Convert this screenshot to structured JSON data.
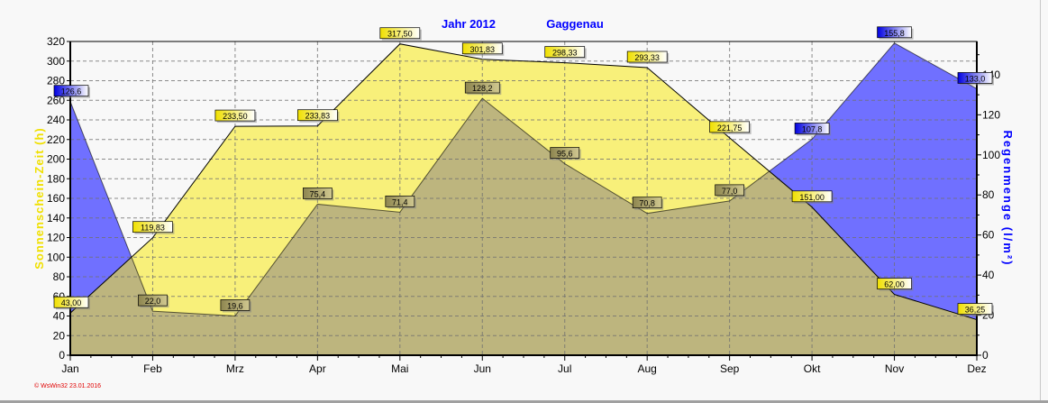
{
  "chart_data": {
    "type": "area",
    "title": "Jahr  2012",
    "subtitle": "Gaggenau",
    "categories": [
      "Jan",
      "Feb",
      "Mrz",
      "Apr",
      "Mai",
      "Jun",
      "Jul",
      "Aug",
      "Sep",
      "Okt",
      "Nov",
      "Dez"
    ],
    "series": [
      {
        "name": "Sonnenschein-Zeit",
        "axis": "left",
        "color": "#f8f07a",
        "values": [
          43.0,
          119.83,
          233.5,
          233.83,
          317.5,
          301.83,
          298.33,
          293.33,
          221.75,
          151.0,
          62.0,
          36.25
        ],
        "labels": [
          "43,00",
          "119,83",
          "233,50",
          "233,83",
          "317,50",
          "301,83",
          "298,33",
          "293,33",
          "221,75",
          "151,00",
          "62,00",
          "36,25"
        ]
      },
      {
        "name": "Regenmenge",
        "axis": "right",
        "color": "#7070ff",
        "values": [
          126.6,
          22.0,
          19.6,
          75.4,
          71.4,
          128.2,
          95.6,
          70.8,
          77.0,
          107.8,
          155.8,
          133.0
        ],
        "labels": [
          "126,6",
          "22,0",
          "19,6",
          "75,4",
          "71,4",
          "128,2",
          "95,6",
          "70,8",
          "77,0",
          "107,8",
          "155,8",
          "133,0"
        ]
      }
    ],
    "overlap_color": "#bdb57e",
    "ylabel": "Sonnenschein-Zeit  (h)",
    "ylabel_color": "#f0e000",
    "y2label": "Regenmenge  (l/m²)",
    "y2label_color": "#0000ff",
    "ylim": [
      0,
      320
    ],
    "y2lim": [
      0,
      156.6
    ],
    "yticks": [
      0,
      20,
      40,
      60,
      80,
      100,
      120,
      140,
      160,
      180,
      200,
      220,
      240,
      260,
      280,
      300,
      320
    ],
    "y2ticks": [
      0,
      20,
      40,
      60,
      80,
      100,
      120,
      140
    ],
    "grid": true
  },
  "footer": "© WsWin32  23.01.2016"
}
